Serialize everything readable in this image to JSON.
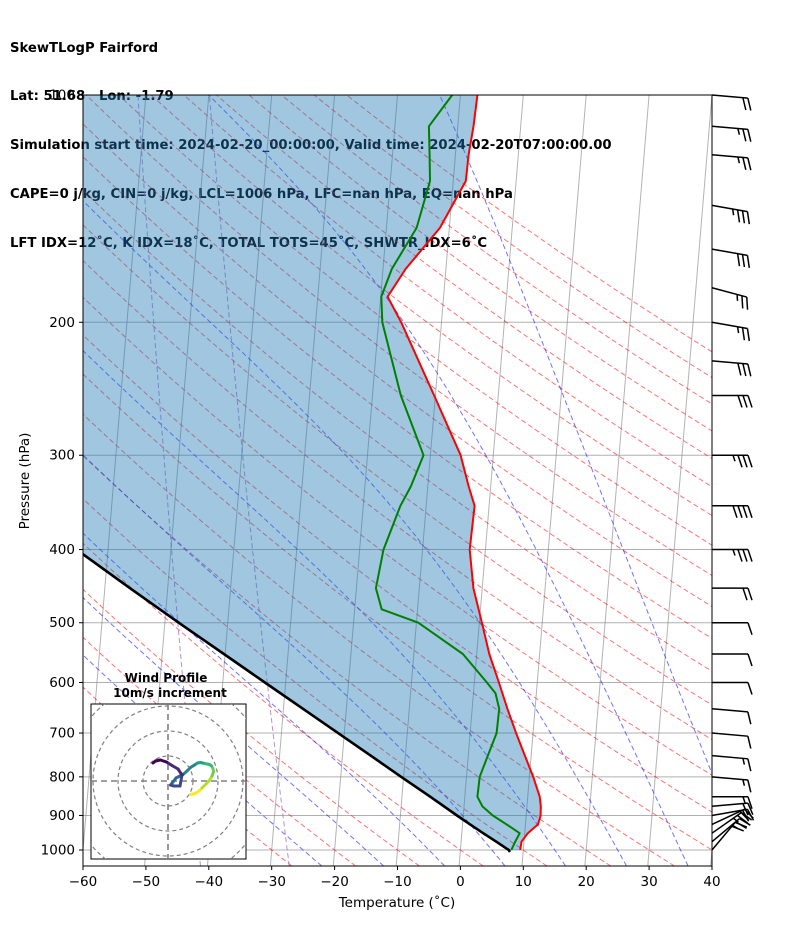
{
  "header": {
    "lines": [
      "SkewTLogP Fairford",
      "Lat: 51.68   Lon: -1.79",
      "Simulation start time: 2024-02-20_00:00:00, Valid time: 2024-02-20T07:00:00.00",
      "CAPE=0 j/kg, CIN=0 j/kg, LCL=1006 hPa, LFC=nan hPa, EQ=nan hPa",
      "LFT IDX=12˚C, K IDX=18˚C, TOTAL TOTS=45˚C, SHWTR_IDX=6˚C"
    ]
  },
  "colors": {
    "temperature": "#ff0000",
    "dewpoint": "#008000",
    "parcel": "#000000",
    "cape_fill": "#1f77b4",
    "dry_adiabat": "#ff0000",
    "moist_adiabat": "#0000ff",
    "mixing_ratio": "#9467bd",
    "isotherm": "#808080"
  },
  "chart_data": [
    {
      "type": "line",
      "subtype": "skew-t log-p",
      "xlabel": "Temperature (˚C)",
      "ylabel": "Pressure (hPa)",
      "xlim": [
        -60,
        40
      ],
      "ylim": [
        1050,
        100
      ],
      "x_ticks": [
        -60,
        -50,
        -40,
        -30,
        -20,
        -10,
        0,
        10,
        20,
        30,
        40
      ],
      "y_ticks": [
        1000,
        900,
        800,
        700,
        600,
        500,
        400,
        300,
        200,
        100
      ],
      "y_scale": "log",
      "grid": true,
      "series": [
        {
          "key": "temperature",
          "pressure": [
            1000,
            975,
            950,
            925,
            900,
            875,
            850,
            800,
            750,
            700,
            650,
            600,
            550,
            500,
            450,
            400,
            350,
            330,
            300,
            250,
            200,
            185,
            170,
            150,
            130,
            120,
            110,
            100
          ],
          "values": [
            9.5,
            9.6,
            10.5,
            12.0,
            12.3,
            12.2,
            11.9,
            10.6,
            9.0,
            7.3,
            5.6,
            3.9,
            2.0,
            0.4,
            -1.4,
            -2.5,
            -2.3,
            -3.5,
            -5.2,
            -10.2,
            -16.4,
            -18.9,
            -16.4,
            -11.5,
            -8.0,
            -7.9,
            -7.5,
            -7.3
          ]
        },
        {
          "key": "dewpoint",
          "pressure": [
            1000,
            975,
            950,
            925,
            900,
            875,
            850,
            800,
            750,
            700,
            650,
            620,
            600,
            550,
            500,
            480,
            450,
            400,
            350,
            330,
            300,
            250,
            200,
            185,
            170,
            150,
            130,
            120,
            110,
            100
          ],
          "values": [
            8.1,
            8.6,
            9.2,
            7.0,
            4.7,
            2.9,
            2.0,
            2.1,
            3.1,
            4.2,
            4.3,
            3.5,
            2.0,
            -2.2,
            -9.7,
            -15.7,
            -16.9,
            -16.2,
            -14.1,
            -12.7,
            -11.1,
            -15.5,
            -19.4,
            -19.9,
            -18.6,
            -15.2,
            -13.7,
            -14.1,
            -14.6,
            -11.3
          ]
        },
        {
          "key": "parcel",
          "pressure": [
            1006,
            1000,
            975,
            950,
            925,
            900,
            850,
            800,
            750,
            700,
            650,
            600,
            550,
            500,
            450,
            400,
            350,
            300,
            250,
            200,
            150,
            100
          ],
          "values": [
            7.9,
            7.7,
            5.6,
            3.4,
            1.2,
            -1.0,
            -5.5,
            -10.4,
            -15.5,
            -21.0,
            -26.9,
            -33.3,
            -40.2,
            -47.8,
            -56.0,
            -65.0,
            -75.0,
            -86.0,
            -98.2,
            -112.0,
            -129.5,
            -151.5
          ]
        }
      ],
      "wind_barbs": {
        "pressure": [
          1000,
          975,
          950,
          925,
          900,
          875,
          850,
          800,
          750,
          700,
          650,
          600,
          550,
          500,
          450,
          400,
          350,
          300,
          250,
          225,
          200,
          180,
          160,
          140,
          120,
          110,
          100
        ],
        "speed_knots": [
          20,
          25,
          25,
          20,
          20,
          20,
          15,
          15,
          15,
          10,
          10,
          10,
          10,
          10,
          20,
          35,
          40,
          35,
          30,
          30,
          25,
          25,
          30,
          35,
          25,
          25,
          20
        ],
        "direction_deg": [
          220,
          230,
          235,
          245,
          260,
          265,
          270,
          275,
          275,
          275,
          275,
          270,
          270,
          270,
          270,
          270,
          270,
          270,
          270,
          275,
          280,
          285,
          280,
          280,
          275,
          275,
          275
        ]
      }
    },
    {
      "type": "line",
      "subtype": "hodograph",
      "title": "Wind Profile",
      "subtitle": "10m/s increment",
      "u": [
        4.5,
        5.2,
        5.6,
        6.2,
        6.8,
        7.6,
        8.4,
        8.8,
        9.1,
        9.0,
        8.7,
        8.3,
        7.8,
        7.4,
        6.9,
        6.5,
        5.9,
        5.3,
        4.5,
        3.8,
        3.0,
        2.2,
        1.6,
        1.0,
        0.5,
        1.2,
        2.4,
        2.8,
        2.0,
        0.8,
        -0.3,
        -1.5,
        -2.5,
        -3.0
      ],
      "v": [
        -2.7,
        -2.6,
        -2.4,
        -2.0,
        -1.4,
        -0.6,
        0.3,
        1.0,
        1.8,
        2.5,
        3.0,
        3.3,
        3.4,
        3.5,
        3.6,
        3.7,
        3.6,
        3.2,
        2.7,
        2.0,
        1.3,
        0.9,
        0.6,
        -0.2,
        -0.8,
        -1.0,
        -1.0,
        1.2,
        2.4,
        3.1,
        3.8,
        4.2,
        4.0,
        3.6
      ],
      "colormap": "viridis"
    }
  ]
}
